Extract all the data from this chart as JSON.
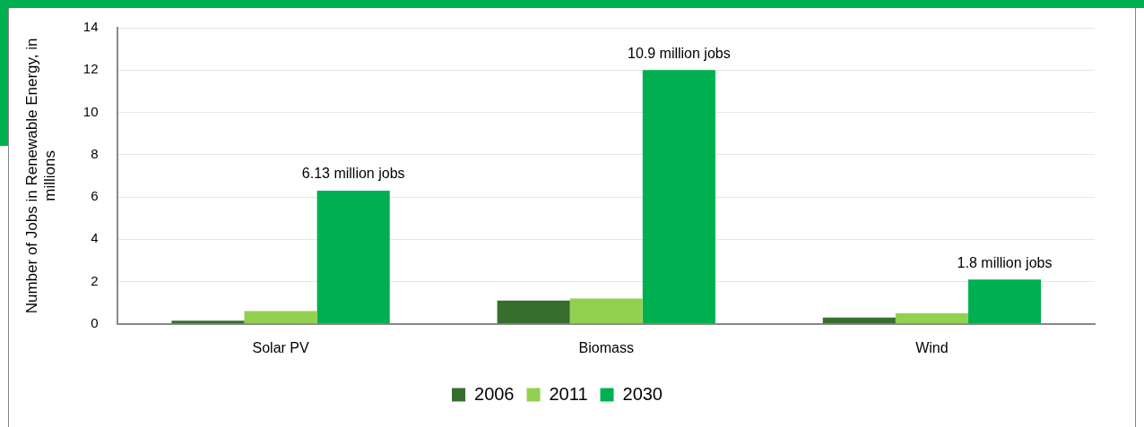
{
  "chart_data": {
    "type": "bar",
    "ylabel": "Number of Jobs in Renewable Energy, in millions",
    "categories": [
      "Solar PV",
      "Biomass",
      "Wind"
    ],
    "series": [
      {
        "name": "2006",
        "color": "#376e2e",
        "values": [
          0.15,
          1.1,
          0.3
        ]
      },
      {
        "name": "2011",
        "color": "#92d050",
        "values": [
          0.6,
          1.2,
          0.5
        ]
      },
      {
        "name": "2030",
        "color": "#00b050",
        "values": [
          6.3,
          12,
          2.1
        ]
      }
    ],
    "ylim": [
      0,
      14
    ],
    "yticks": [
      0,
      2,
      4,
      6,
      8,
      10,
      12,
      14
    ],
    "grid": "y",
    "legend": "bottom",
    "annotations": [
      "6.13 million jobs",
      "10.9 million jobs",
      "1.8 million jobs"
    ]
  }
}
